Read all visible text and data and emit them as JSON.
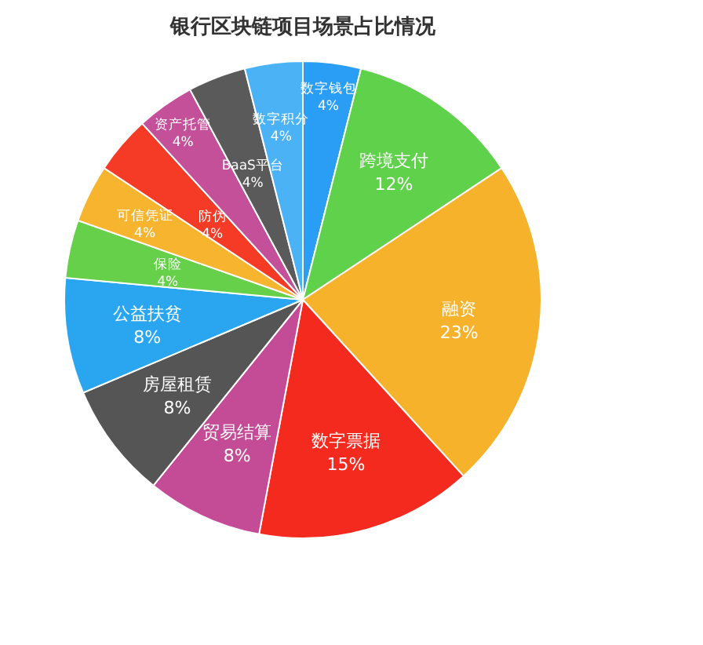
{
  "chart_data": {
    "type": "pie",
    "title": "银行区块链项目场景占比情况",
    "categories": [
      "数字钱包",
      "跨境支付",
      "融资",
      "数字票据",
      "贸易结算",
      "房屋租赁",
      "公益扶贫",
      "保险",
      "可信凭证",
      "防伪",
      "资产托管",
      "BaaS平台",
      "数字积分"
    ],
    "values": [
      4,
      12,
      23,
      15,
      8,
      8,
      8,
      4,
      4,
      4,
      4,
      4,
      4
    ],
    "value_labels": [
      "4%",
      "12%",
      "23%",
      "15%",
      "8%",
      "8%",
      "8%",
      "4%",
      "4%",
      "4%",
      "4%",
      "4%",
      "4%"
    ],
    "colors": [
      "#2a9df4",
      "#5fd14a",
      "#f5b22a",
      "#f52a1e",
      "#c44b96",
      "#555555",
      "#2aa6f0",
      "#66d04b",
      "#f7b52f",
      "#f53a26",
      "#c4509a",
      "#5a5a5a",
      "#4bb3f5"
    ],
    "legend": false
  }
}
